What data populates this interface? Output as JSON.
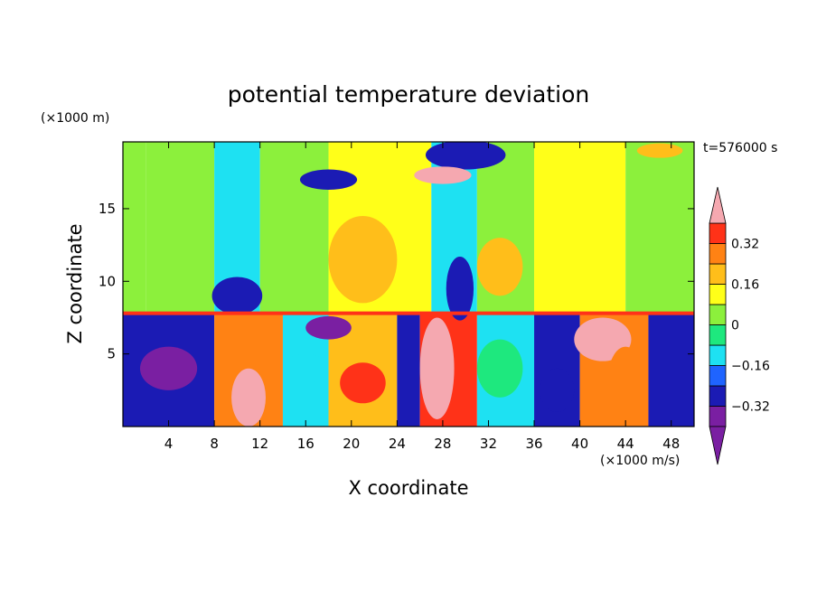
{
  "chart_data": {
    "type": "heatmap",
    "title": "potential temperature deviation",
    "xlabel": "X coordinate",
    "ylabel": "Z coordinate",
    "x_unit_label": "(×1000 m/s)",
    "y_unit_label": "(×1000 m)",
    "time_label": "t=576000 s",
    "xlim": [
      0,
      50
    ],
    "ylim": [
      0,
      19.6
    ],
    "x_ticks": [
      4,
      8,
      12,
      16,
      20,
      24,
      28,
      32,
      36,
      40,
      44,
      48
    ],
    "y_ticks": [
      5,
      10,
      15
    ],
    "colorbar": {
      "tick_labels": [
        "0.32",
        "0.16",
        "0",
        "−0.16",
        "−0.32"
      ],
      "tick_values": [
        0.32,
        0.16,
        0,
        -0.16,
        -0.32
      ],
      "levels": [
        -0.4,
        -0.32,
        -0.24,
        -0.16,
        -0.08,
        0,
        0.08,
        0.16,
        0.24,
        0.32,
        0.4
      ],
      "colors": [
        "#7a1fa2",
        "#1b1bb4",
        "#1f64ff",
        "#1ee1f2",
        "#1ee87e",
        "#8cf03c",
        "#ffff19",
        "#ffbe1a",
        "#ff8214",
        "#ff3218"
      ],
      "under_color": "#7a1fa2",
      "over_color": "#f5a8b0"
    },
    "upper_layer": [
      {
        "x0": 0,
        "x1": 2,
        "z0": 7.8,
        "z1": 19.6,
        "value": 0.04
      },
      {
        "x0": 2,
        "x1": 8,
        "z0": 7.8,
        "z1": 19.6,
        "value": 0.02
      },
      {
        "x0": 8,
        "x1": 12,
        "z0": 7.8,
        "z1": 19.6,
        "value": -0.1
      },
      {
        "x0": 12,
        "x1": 18,
        "z0": 7.8,
        "z1": 19.6,
        "value": 0.04
      },
      {
        "x0": 18,
        "x1": 27,
        "z0": 7.8,
        "z1": 19.6,
        "value": 0.14
      },
      {
        "x0": 27,
        "x1": 31,
        "z0": 7.8,
        "z1": 19.6,
        "value": -0.12
      },
      {
        "x0": 31,
        "x1": 36,
        "z0": 7.8,
        "z1": 19.6,
        "value": 0.06
      },
      {
        "x0": 36,
        "x1": 44,
        "z0": 7.8,
        "z1": 19.6,
        "value": 0.1
      },
      {
        "x0": 44,
        "x1": 50,
        "z0": 7.8,
        "z1": 19.6,
        "value": 0.05
      }
    ],
    "upper_features": [
      {
        "x": 10,
        "z": 9.0,
        "rx": 2.2,
        "rz": 1.3,
        "value": -0.3
      },
      {
        "x": 29.5,
        "z": 9.5,
        "rx": 1.2,
        "rz": 2.2,
        "value": -0.3
      },
      {
        "x": 18,
        "z": 17.0,
        "rx": 2.5,
        "rz": 0.7,
        "value": -0.3
      },
      {
        "x": 30,
        "z": 18.7,
        "rx": 3.5,
        "rz": 1.0,
        "value": -0.25
      },
      {
        "x": 28,
        "z": 17.3,
        "rx": 2.5,
        "rz": 0.6,
        "value": 0.45
      },
      {
        "x": 47,
        "z": 19.0,
        "rx": 2.0,
        "rz": 0.5,
        "value": 0.2
      },
      {
        "x": 21,
        "z": 11.5,
        "rx": 3.0,
        "rz": 3.0,
        "value": 0.16
      },
      {
        "x": 33,
        "z": 11.0,
        "rx": 2.0,
        "rz": 2.0,
        "value": 0.16
      }
    ],
    "lower_layer": [
      {
        "x0": 0,
        "x1": 8,
        "z0": 0,
        "z1": 7.8,
        "value": -0.3
      },
      {
        "x0": 8,
        "x1": 14,
        "z0": 0,
        "z1": 7.8,
        "value": 0.3
      },
      {
        "x0": 14,
        "x1": 18,
        "z0": 0,
        "z1": 7.8,
        "value": -0.12
      },
      {
        "x0": 18,
        "x1": 24,
        "z0": 0,
        "z1": 7.8,
        "value": 0.2
      },
      {
        "x0": 24,
        "x1": 26,
        "z0": 0,
        "z1": 7.8,
        "value": -0.3
      },
      {
        "x0": 26,
        "x1": 31,
        "z0": 0,
        "z1": 7.8,
        "value": 0.36
      },
      {
        "x0": 31,
        "x1": 36,
        "z0": 0,
        "z1": 7.8,
        "value": -0.14
      },
      {
        "x0": 36,
        "x1": 40,
        "z0": 0,
        "z1": 7.8,
        "value": -0.32
      },
      {
        "x0": 40,
        "x1": 46,
        "z0": 0,
        "z1": 7.8,
        "value": 0.24
      },
      {
        "x0": 46,
        "x1": 50,
        "z0": 0,
        "z1": 7.8,
        "value": -0.28
      }
    ],
    "lower_features": [
      {
        "x": 4,
        "z": 4.0,
        "rx": 2.5,
        "rz": 1.5,
        "value": -0.36
      },
      {
        "x": 11,
        "z": 2.0,
        "rx": 1.5,
        "rz": 2.0,
        "value": 0.45
      },
      {
        "x": 16,
        "z": 4.0,
        "rx": 2.0,
        "rz": 1.0,
        "value": -0.14
      },
      {
        "x": 21,
        "z": 3.0,
        "rx": 2.0,
        "rz": 1.4,
        "value": 0.32
      },
      {
        "x": 27.5,
        "z": 4.0,
        "rx": 1.5,
        "rz": 3.5,
        "value": 0.45
      },
      {
        "x": 33,
        "z": 4.0,
        "rx": 2.0,
        "rz": 2.0,
        "value": -0.02
      },
      {
        "x": 38,
        "z": 2.5,
        "rx": 1.5,
        "rz": 1.5,
        "value": -0.32
      },
      {
        "x": 42,
        "z": 6.0,
        "rx": 2.5,
        "rz": 1.5,
        "value": 0.45
      },
      {
        "x": 44,
        "z": 3.0,
        "rx": 1.6,
        "rz": 2.5,
        "value": 0.28
      },
      {
        "x": 18,
        "z": 6.8,
        "rx": 2.0,
        "rz": 0.8,
        "value": -0.4
      }
    ],
    "interface": {
      "z": 7.8,
      "value": 0.32
    }
  }
}
